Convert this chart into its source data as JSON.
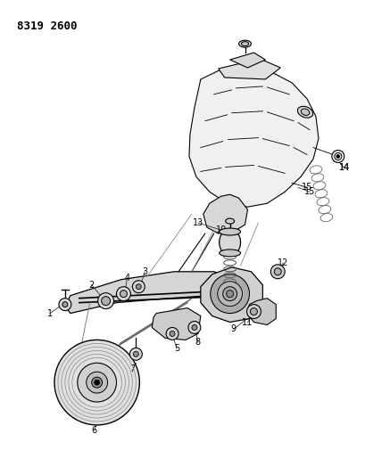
{
  "title": "8319 2600",
  "background_color": "#ffffff",
  "line_color": "#000000",
  "label_color": "#000000",
  "fig_width": 4.1,
  "fig_height": 5.33,
  "dpi": 100
}
